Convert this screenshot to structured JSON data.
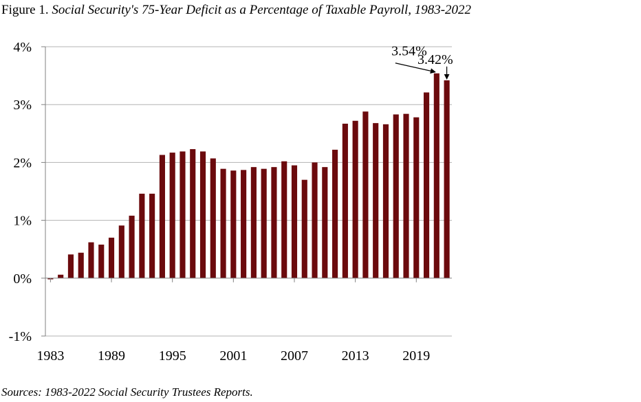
{
  "title": {
    "prefix": "Figure 1.",
    "text": "Social Security's 75-Year Deficit as a Percentage of Taxable Payroll, 1983-2022"
  },
  "source": "Sources: 1983-2022 Social Security Trustees Reports.",
  "colors": {
    "bar": "#6b0a0d",
    "grid": "#b3b3b3",
    "axis": "#808080"
  },
  "chart_data": {
    "type": "bar",
    "title": "Social Security's 75-Year Deficit as a Percentage of Taxable Payroll, 1983-2022",
    "xlabel": "",
    "ylabel": "",
    "ylim": [
      -1,
      4
    ],
    "yticks": [
      -1,
      0,
      1,
      2,
      3,
      4
    ],
    "ytick_labels": [
      "-1%",
      "0%",
      "1%",
      "2%",
      "3%",
      "4%"
    ],
    "xtick_labels": [
      "1983",
      "1989",
      "1995",
      "2001",
      "2007",
      "2013",
      "2019"
    ],
    "xtick_positions": [
      1983,
      1989,
      1995,
      2001,
      2007,
      2013,
      2019
    ],
    "grid": true,
    "categories": [
      1983,
      1984,
      1985,
      1986,
      1987,
      1988,
      1989,
      1990,
      1991,
      1992,
      1993,
      1994,
      1995,
      1996,
      1997,
      1998,
      1999,
      2000,
      2001,
      2002,
      2003,
      2004,
      2005,
      2006,
      2007,
      2008,
      2009,
      2010,
      2011,
      2012,
      2013,
      2014,
      2015,
      2016,
      2017,
      2018,
      2019,
      2020,
      2021,
      2022
    ],
    "values": [
      -0.02,
      0.06,
      0.41,
      0.44,
      0.62,
      0.58,
      0.7,
      0.91,
      1.08,
      1.46,
      1.46,
      2.13,
      2.17,
      2.19,
      2.23,
      2.19,
      2.07,
      1.89,
      1.86,
      1.87,
      1.92,
      1.89,
      1.92,
      2.02,
      1.95,
      1.7,
      2.0,
      1.92,
      2.22,
      2.67,
      2.72,
      2.88,
      2.68,
      2.66,
      2.83,
      2.84,
      2.78,
      3.21,
      3.54,
      3.42
    ],
    "annotations": [
      {
        "text": "3.54%",
        "year": 2021,
        "value": 3.54
      },
      {
        "text": "3.42%",
        "year": 2022,
        "value": 3.42
      }
    ]
  }
}
